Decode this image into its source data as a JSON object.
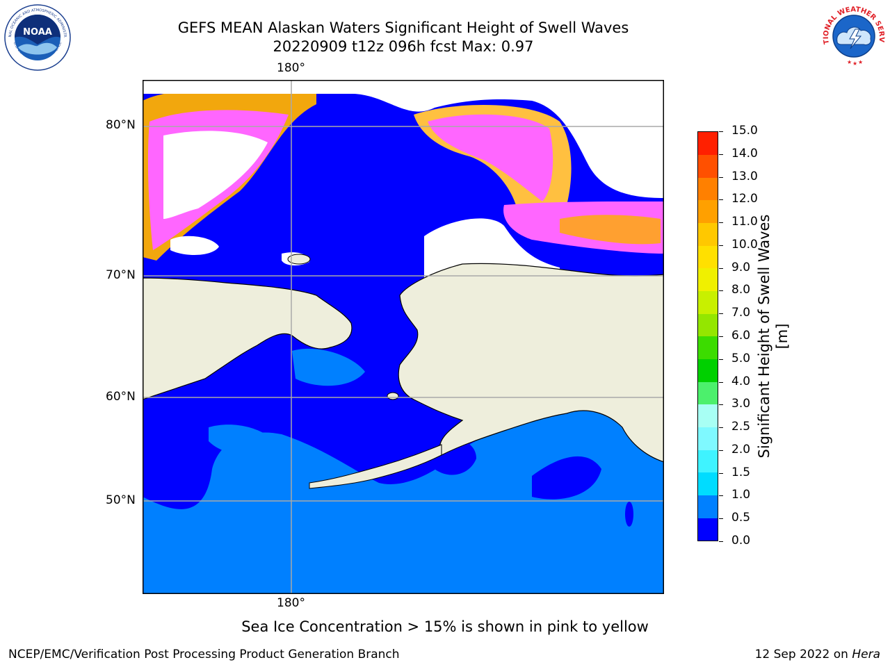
{
  "header": {
    "title_line1": "GEFS MEAN Alaskan Waters Significant Height of Swell Waves",
    "title_line2": "20220909 t12z 096h fcst   Max: 0.97"
  },
  "logos": {
    "noaa_text": "NOAA",
    "noaa_ring_top": "NATIONAL OCEANIC AND ATMOSPHERIC ADMINISTRATION",
    "noaa_ring_bottom": "U.S. DEPARTMENT OF COMMERCE",
    "nws_ring": "NATIONAL WEATHER SERVICE"
  },
  "map": {
    "lon_labels": [
      "180°",
      "180°"
    ],
    "lat_labels": [
      "80°N",
      "70°N",
      "60°N",
      "50°N"
    ]
  },
  "colorbar": {
    "label": "Significant Height of Swell Waves [m]",
    "ticks": [
      "0.0",
      "0.5",
      "1.0",
      "1.5",
      "2.0",
      "2.5",
      "3.0",
      "4.0",
      "5.0",
      "6.0",
      "7.0",
      "8.0",
      "9.0",
      "10.0",
      "11.0",
      "12.0",
      "13.0",
      "14.0",
      "15.0"
    ],
    "colors": [
      "#0000ff",
      "#0080ff",
      "#00dcff",
      "#3ff3ff",
      "#7ff9ff",
      "#a8fff4",
      "#4cf06c",
      "#00d000",
      "#3cdc00",
      "#94e600",
      "#c8f000",
      "#f0f000",
      "#ffe000",
      "#ffc800",
      "#ffa000",
      "#ff8000",
      "#ff5000",
      "#ff2000"
    ]
  },
  "caption": "Sea Ice Concentration > 15% is shown in pink to yellow",
  "footer": {
    "left": "NCEP/EMC/Verification Post Processing Product Generation Branch",
    "right_date": "12 Sep 2022 on ",
    "right_host": "Hera"
  }
}
